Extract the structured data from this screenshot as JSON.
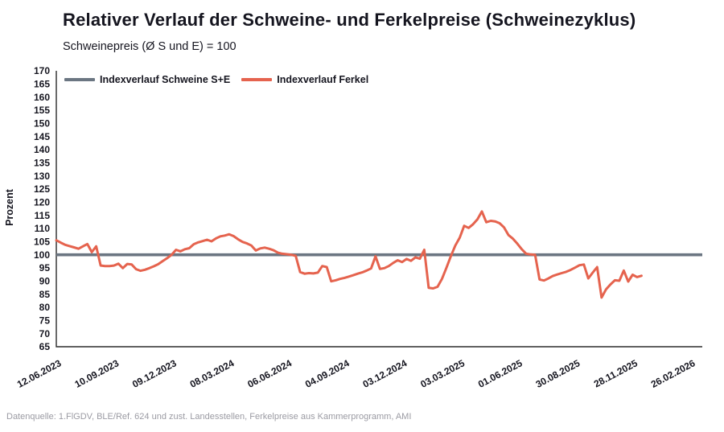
{
  "header": {
    "title": "Relativer Verlauf der Schweine- und Ferkelpreise (Schweinezyklus)",
    "subtitle": "Schweinepreis (Ø S und E) = 100"
  },
  "footer": {
    "source": "Datenquelle: 1.FlGDV, BLE/Ref. 624 und zust. Landesstellen, Ferkelpreise aus Kammerprogramm, AMI"
  },
  "colors": {
    "schweine_line": "#6b7682",
    "ferkel_line": "#e5634e",
    "axis": "#2b2b2b",
    "text": "#15151f",
    "muted_text": "#9b9ba3"
  },
  "chart_data": {
    "type": "line",
    "title": "Relativer Verlauf der Schweine- und Ferkelpreise (Schweinezyklus)",
    "subtitle": "Schweinepreis (Ø S und E) = 100",
    "xlabel": "",
    "ylabel": "Prozent",
    "ylim": [
      65,
      170
    ],
    "ytick_step": 5,
    "grid": false,
    "legend_position": "top-left",
    "x_unit": "weekly",
    "weeks_per_tick": 13,
    "x_tick_labels": [
      "12.06.2023",
      "10.09.2023",
      "09.12.2023",
      "08.03.2024",
      "06.06.2024",
      "04.09.2024",
      "03.12.2024",
      "03.03.2025",
      "01.06.2025",
      "30.08.2025",
      "28.11.2025",
      "26.02.2026"
    ],
    "series": [
      {
        "name": "Indexverlauf Schweine S+E",
        "color": "#6b7682",
        "type": "constant",
        "value": 100
      },
      {
        "name": "Indexverlauf Ferkel",
        "color": "#e5634e",
        "type": "values",
        "start_label": "12.06.2023",
        "values": [
          105.5,
          104.6,
          103.8,
          103.3,
          102.8,
          102.3,
          103.2,
          104.1,
          101.0,
          103.2,
          95.9,
          95.7,
          95.7,
          95.9,
          96.6,
          94.9,
          96.5,
          96.3,
          94.5,
          93.9,
          94.3,
          94.9,
          95.6,
          96.4,
          97.6,
          98.7,
          100.0,
          101.9,
          101.3,
          102.1,
          102.5,
          104.0,
          104.7,
          105.2,
          105.7,
          105.1,
          106.2,
          107.0,
          107.3,
          107.8,
          107.1,
          105.9,
          104.9,
          104.3,
          103.5,
          101.6,
          102.4,
          102.7,
          102.3,
          101.7,
          100.8,
          100.4,
          100.2,
          100.0,
          99.6,
          93.4,
          92.8,
          93.0,
          92.9,
          93.2,
          95.7,
          95.3,
          89.9,
          90.3,
          90.8,
          91.2,
          91.7,
          92.2,
          92.8,
          93.3,
          94.0,
          94.8,
          99.4,
          94.6,
          94.9,
          95.7,
          96.9,
          97.9,
          97.2,
          98.4,
          97.7,
          99.0,
          98.5,
          101.9,
          87.4,
          87.2,
          87.8,
          90.8,
          95.0,
          99.5,
          103.5,
          106.5,
          111.0,
          110.2,
          111.6,
          113.5,
          116.5,
          112.4,
          112.9,
          112.7,
          112.0,
          110.4,
          107.5,
          106.1,
          104.2,
          102.1,
          100.4,
          100.1,
          100.0,
          90.6,
          90.2,
          91.0,
          91.9,
          92.5,
          93.0,
          93.5,
          94.2,
          95.1,
          96.0,
          96.3,
          91.0,
          93.2,
          95.3,
          83.7,
          86.8,
          88.7,
          90.3,
          90.1,
          94.0,
          89.8,
          92.4,
          91.5,
          92.0
        ]
      }
    ]
  }
}
